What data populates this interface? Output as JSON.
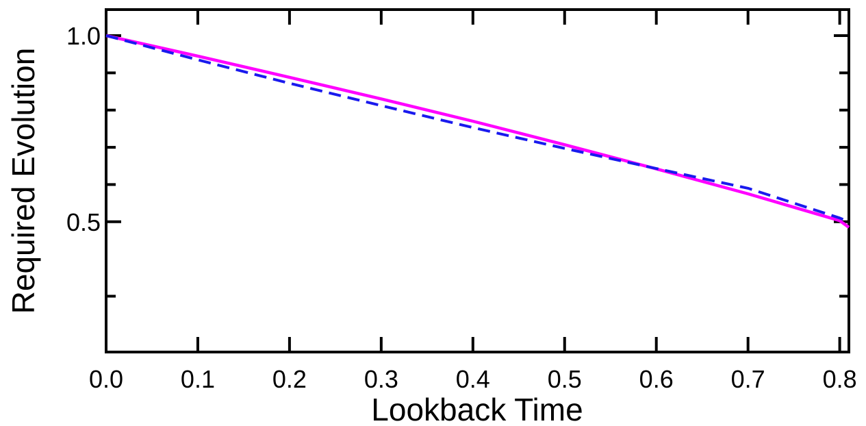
{
  "chart_data": {
    "type": "line",
    "title": "",
    "xlabel": "Lookback Time",
    "ylabel": "Required Evolution",
    "xlim": [
      0.0,
      0.81
    ],
    "ylim": [
      0.15,
      1.07
    ],
    "x_ticks": [
      0.0,
      0.1,
      0.2,
      0.3,
      0.4,
      0.5,
      0.6,
      0.7,
      0.8
    ],
    "x_tick_labels": [
      "0.0",
      "0.1",
      "0.2",
      "0.3",
      "0.4",
      "0.5",
      "0.6",
      "0.7",
      "0.8"
    ],
    "y_ticks": [
      0.5,
      1.0
    ],
    "y_tick_labels": [
      "0.5",
      "1.0"
    ],
    "y_minor_ticks": [
      0.3,
      0.6,
      0.7,
      0.8,
      0.9
    ],
    "grid": false,
    "legend": "none",
    "series": [
      {
        "color": "#ff00ff",
        "line_style": "solid",
        "x": [
          0.0,
          0.1,
          0.2,
          0.3,
          0.4,
          0.5,
          0.6,
          0.7,
          0.8,
          0.81
        ],
        "y": [
          1.0,
          0.945,
          0.888,
          0.83,
          0.77,
          0.707,
          0.642,
          0.575,
          0.503,
          0.485
        ]
      },
      {
        "color": "#1a1aee",
        "line_style": "dashed",
        "x": [
          0.0,
          0.1,
          0.2,
          0.3,
          0.4,
          0.5,
          0.6,
          0.7,
          0.8,
          0.81
        ],
        "y": [
          1.0,
          0.935,
          0.872,
          0.812,
          0.753,
          0.697,
          0.643,
          0.59,
          0.51,
          0.5
        ]
      }
    ]
  }
}
